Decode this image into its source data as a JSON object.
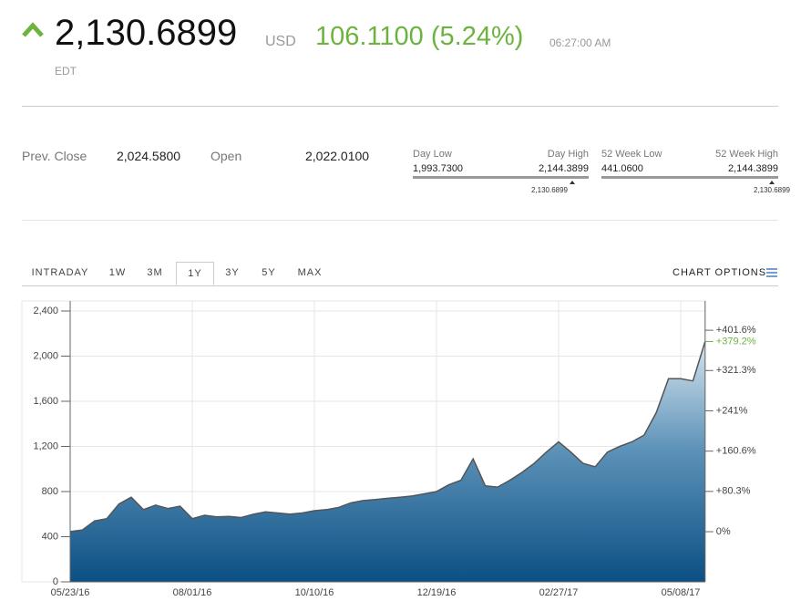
{
  "header": {
    "price": "2,130.6899",
    "currency": "USD",
    "change": "106.1100 (5.24%)",
    "time": "06:27:00 AM",
    "timezone": "EDT"
  },
  "stats": {
    "prev_close_label": "Prev. Close",
    "prev_close": "2,024.5800",
    "open_label": "Open",
    "open": "2,022.0100"
  },
  "ranges": [
    {
      "low_label": "Day Low",
      "low": "1,993.7300",
      "high_label": "Day High",
      "high": "2,144.3899",
      "current": "2,130.6899"
    },
    {
      "low_label": "52 Week Low",
      "low": "441.0600",
      "high_label": "52 Week High",
      "high": "2,144.3899",
      "current": "2,130.6899"
    }
  ],
  "tabs": [
    "INTRADAY",
    "1W",
    "3M",
    "1Y",
    "3Y",
    "5Y",
    "MAX"
  ],
  "selected_tab": "1Y",
  "chart_options": "CHART OPTIONS",
  "chart_data": {
    "type": "area",
    "color": "#0b4f84",
    "line_color": "#555555",
    "grid": true,
    "categories": [
      "05/23/16",
      null,
      null,
      null,
      null,
      null,
      null,
      null,
      null,
      null,
      "08/01/16",
      null,
      null,
      null,
      null,
      null,
      null,
      null,
      null,
      null,
      "10/10/16",
      null,
      null,
      null,
      null,
      null,
      null,
      null,
      null,
      null,
      "12/19/16",
      null,
      null,
      null,
      null,
      null,
      null,
      null,
      null,
      null,
      "02/27/17",
      null,
      null,
      null,
      null,
      null,
      null,
      null,
      null,
      null,
      "05/08/17",
      null,
      null
    ],
    "values": [
      445,
      460,
      540,
      560,
      690,
      750,
      640,
      680,
      650,
      670,
      560,
      590,
      575,
      580,
      570,
      600,
      620,
      610,
      600,
      610,
      630,
      640,
      660,
      700,
      720,
      730,
      740,
      750,
      760,
      780,
      800,
      860,
      900,
      1090,
      850,
      840,
      900,
      970,
      1050,
      1150,
      1240,
      1150,
      1050,
      1020,
      1150,
      1200,
      1240,
      1300,
      1500,
      1800,
      1800,
      1780,
      2130
    ],
    "ylim": [
      0,
      2400
    ],
    "yticks": [
      0,
      {
        "value": 400,
        "label": "400"
      },
      {
        "value": 800,
        "label": "800"
      },
      {
        "value": 1200,
        "label": "1,200"
      },
      {
        "value": 1600,
        "label": "1,600"
      },
      {
        "value": 2000,
        "label": "2,000"
      },
      {
        "value": 2400,
        "label": "2,400"
      }
    ],
    "y2lim": [
      -100,
      440
    ],
    "y2ticks": [
      {
        "value": 0,
        "label": "0%"
      },
      {
        "value": 80.3,
        "label": "+80.3%"
      },
      {
        "value": 160.6,
        "label": "+160.6%"
      },
      {
        "value": 241,
        "label": "+241%"
      },
      {
        "value": 321.3,
        "label": "+321.3%"
      },
      {
        "value": 401.6,
        "label": "+401.6%"
      }
    ],
    "current": {
      "value": 379.2,
      "label": "+379.2%",
      "color": "#6db33f"
    }
  }
}
